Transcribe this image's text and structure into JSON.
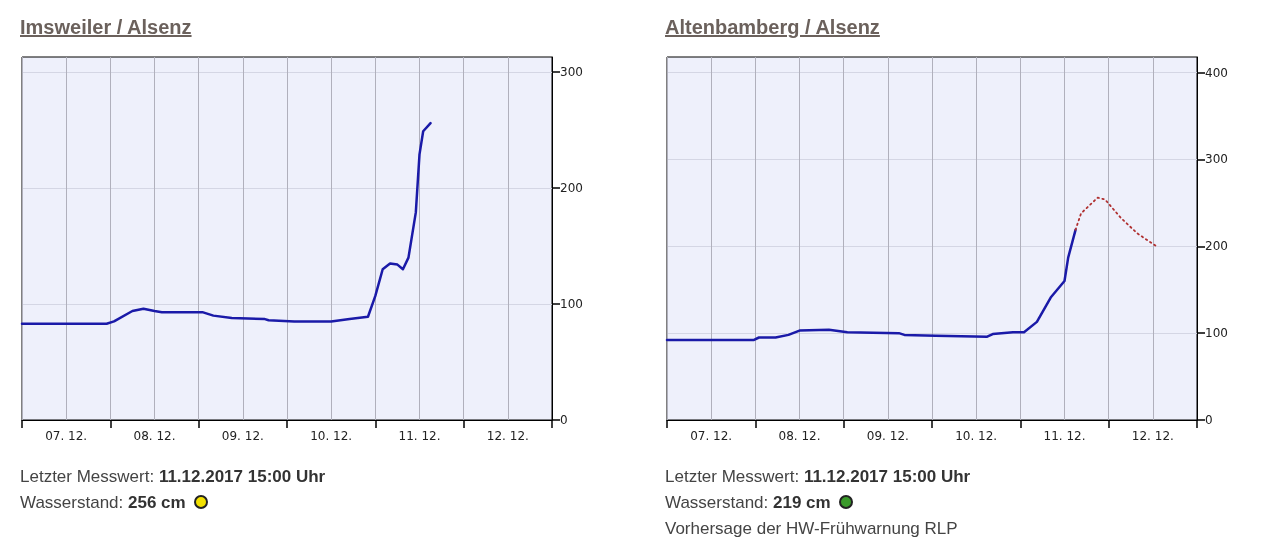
{
  "chart_data": [
    {
      "type": "line",
      "title": "Imsweiler / Alsenz",
      "xlim": [
        "2017-12-07T00:00",
        "2017-12-13T00:00"
      ],
      "xticks": [
        {
          "value": "2017-12-07T00:00",
          "label": null
        },
        {
          "value": "2017-12-07T12:00",
          "label": "07. 12."
        },
        {
          "value": "2017-12-08T00:00",
          "label": null
        },
        {
          "value": "2017-12-08T12:00",
          "label": "08. 12."
        },
        {
          "value": "2017-12-09T00:00",
          "label": null
        },
        {
          "value": "2017-12-09T12:00",
          "label": "09. 12."
        },
        {
          "value": "2017-12-10T00:00",
          "label": null
        },
        {
          "value": "2017-12-10T12:00",
          "label": "10. 12."
        },
        {
          "value": "2017-12-11T00:00",
          "label": null
        },
        {
          "value": "2017-12-11T12:00",
          "label": "11. 12."
        },
        {
          "value": "2017-12-12T00:00",
          "label": null
        },
        {
          "value": "2017-12-12T12:00",
          "label": "12. 12."
        },
        {
          "value": "2017-12-13T00:00",
          "label": null
        }
      ],
      "ylim": [
        0,
        313
      ],
      "yticks": [
        0,
        100,
        200,
        300
      ],
      "grid": true,
      "marker": "none",
      "series": [
        {
          "color": "#1a1aa8",
          "line_style": "solid",
          "x": [
            "2017-12-07T00:00",
            "2017-12-07T23:00",
            "2017-12-08T01:00",
            "2017-12-08T06:00",
            "2017-12-08T09:00",
            "2017-12-08T12:00",
            "2017-12-08T14:00",
            "2017-12-09T01:00",
            "2017-12-09T04:00",
            "2017-12-09T09:00",
            "2017-12-09T18:00",
            "2017-12-09T19:00",
            "2017-12-10T02:00",
            "2017-12-10T12:00",
            "2017-12-10T17:00",
            "2017-12-10T22:00",
            "2017-12-11T00:00",
            "2017-12-11T02:00",
            "2017-12-11T04:00",
            "2017-12-11T06:00",
            "2017-12-11T07:30",
            "2017-12-11T09:00",
            "2017-12-11T11:00",
            "2017-12-11T12:00",
            "2017-12-11T13:00",
            "2017-12-11T15:00"
          ],
          "values": [
            83,
            83,
            85,
            94,
            96,
            94,
            93,
            93,
            90,
            88,
            87,
            86,
            85,
            85,
            87,
            89,
            107,
            130,
            135,
            134,
            130,
            140,
            179,
            229,
            249,
            256
          ]
        }
      ],
      "annotations": [
        "Letzter Messwert: 11.12.2017 15:00 Uhr",
        "Wasserstand: 256 cm"
      ]
    },
    {
      "type": "line",
      "title": "Altenbamberg / Alsenz",
      "xlim": [
        "2017-12-07T00:00",
        "2017-12-13T00:00"
      ],
      "xticks": [
        {
          "value": "2017-12-07T00:00",
          "label": null
        },
        {
          "value": "2017-12-07T12:00",
          "label": "07. 12."
        },
        {
          "value": "2017-12-08T00:00",
          "label": null
        },
        {
          "value": "2017-12-08T12:00",
          "label": "08. 12."
        },
        {
          "value": "2017-12-09T00:00",
          "label": null
        },
        {
          "value": "2017-12-09T12:00",
          "label": "09. 12."
        },
        {
          "value": "2017-12-10T00:00",
          "label": null
        },
        {
          "value": "2017-12-10T12:00",
          "label": "10. 12."
        },
        {
          "value": "2017-12-11T00:00",
          "label": null
        },
        {
          "value": "2017-12-11T12:00",
          "label": "11. 12."
        },
        {
          "value": "2017-12-12T00:00",
          "label": null
        },
        {
          "value": "2017-12-12T12:00",
          "label": "12. 12."
        },
        {
          "value": "2017-12-13T00:00",
          "label": null
        }
      ],
      "ylim": [
        0,
        418
      ],
      "yticks": [
        0,
        100,
        200,
        300,
        400
      ],
      "grid": true,
      "marker": "none",
      "series": [
        {
          "color": "#1a1aa8",
          "line_style": "solid",
          "x": [
            "2017-12-07T00:00",
            "2017-12-07T23:30",
            "2017-12-08T01:00",
            "2017-12-08T05:30",
            "2017-12-08T09:00",
            "2017-12-08T12:00",
            "2017-12-08T20:00",
            "2017-12-09T01:00",
            "2017-12-09T15:00",
            "2017-12-09T16:30",
            "2017-12-10T01:00",
            "2017-12-10T15:00",
            "2017-12-10T16:30",
            "2017-12-10T22:00",
            "2017-12-11T01:00",
            "2017-12-11T04:30",
            "2017-12-11T08:15",
            "2017-12-11T12:00",
            "2017-12-11T13:00",
            "2017-12-11T15:00"
          ],
          "values": [
            92,
            92,
            95,
            95,
            98,
            103,
            104,
            101,
            100,
            98,
            97,
            96,
            99,
            101,
            101,
            113,
            141,
            160,
            187,
            219
          ]
        },
        {
          "color": "#b03030",
          "line_style": "dotted",
          "x": [
            "2017-12-11T15:00",
            "2017-12-11T16:30",
            "2017-12-11T21:00",
            "2017-12-11T23:00",
            "2017-12-12T03:15",
            "2017-12-12T07:45",
            "2017-12-12T13:00"
          ],
          "values": [
            219,
            238,
            256,
            254,
            233,
            215,
            200
          ]
        }
      ],
      "annotations": [
        "Letzter Messwert: 11.12.2017 15:00 Uhr",
        "Wasserstand: 219 cm",
        "Vorhersage der HW-Frühwarnung RLP"
      ]
    }
  ]
}
